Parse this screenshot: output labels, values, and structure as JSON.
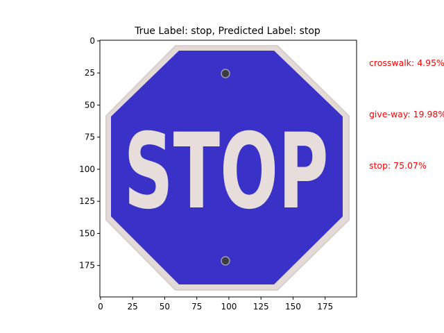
{
  "chart_data": {
    "type": "image",
    "title": "True Label: stop, Predicted Label: stop",
    "image_subject": "blue-stop-sign",
    "image_text": "STOP",
    "xlim": [
      -0.5,
      199.5
    ],
    "ylim": [
      199.5,
      -0.5
    ],
    "xticks": [
      0,
      25,
      50,
      75,
      100,
      125,
      150,
      175
    ],
    "yticks": [
      0,
      25,
      50,
      75,
      100,
      125,
      150,
      175
    ],
    "predictions": [
      {
        "label": "crosswalk: 4.95%",
        "class": "crosswalk",
        "probability": 4.95
      },
      {
        "label": "give-way: 19.98%",
        "class": "give-way",
        "probability": 19.98
      },
      {
        "label": "stop: 75.07%",
        "class": "stop",
        "probability": 75.07
      }
    ],
    "colors": {
      "prediction_text": "#ff0000",
      "sign_fill": "#3a32c8",
      "sign_border": "#e2d8d6"
    }
  }
}
